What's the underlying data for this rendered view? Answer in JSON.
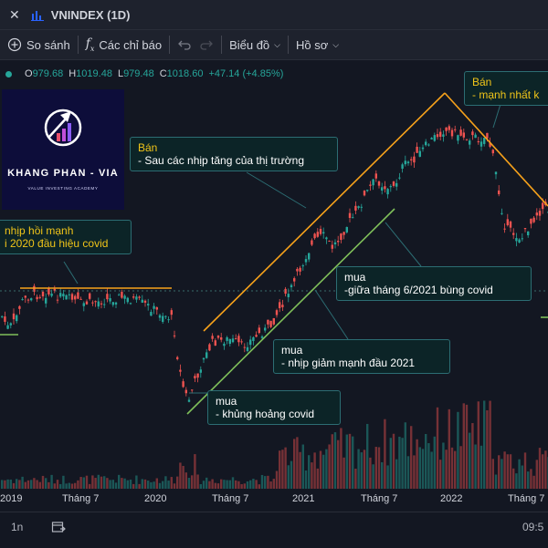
{
  "header": {
    "close_symbol": "✕",
    "chart_type_icon": "bar-chart-icon",
    "symbol": "VNINDEX (1D)"
  },
  "toolbar": {
    "compare_label": "So sánh",
    "indicators_label": "Các chỉ báo",
    "chart_label": "Biểu đồ",
    "profile_label": "Hồ sơ"
  },
  "ohlc": {
    "o_label": "O",
    "o_value": "979.68",
    "h_label": "H",
    "h_value": "1019.48",
    "l_label": "L",
    "l_value": "979.48",
    "c_label": "C",
    "c_value": "1018.60",
    "change": "+47.14 (+4.85%)"
  },
  "logo": {
    "name": "KHANG PHAN - VIA",
    "tagline": "VALUE INVESTING ACADEMY"
  },
  "annotations": {
    "a1_line1": "Bán",
    "a1_line2": "- Sau các nhịp tăng của thị trường",
    "a2_line1": "Bán",
    "a2_line2": "- mạnh nhất k",
    "a3_line1": "nhịp hồi mạnh",
    "a3_line2": "i 2020 đầu hiệu covid",
    "a4_line1": "mua",
    "a4_line2": "-giữa tháng 6/2021 bùng covid",
    "a5_line1": "mua",
    "a5_line2": "- nhịp giảm mạnh đầu 2021",
    "a6_line1": "mua",
    "a6_line2": "- khủng hoảng covid"
  },
  "xaxis": {
    "labels": [
      "2019",
      "Tháng 7",
      "2020",
      "Tháng 7",
      "2021",
      "Tháng 7",
      "2022",
      "Tháng 7"
    ]
  },
  "bottombar": {
    "range": "1n",
    "time": "09:5"
  },
  "colors": {
    "up": "#26a69a",
    "down": "#ef5350",
    "orange_trend": "#f7a21b",
    "green_trend": "#7fbf5a",
    "annotation_yellow": "#f0c419"
  }
}
